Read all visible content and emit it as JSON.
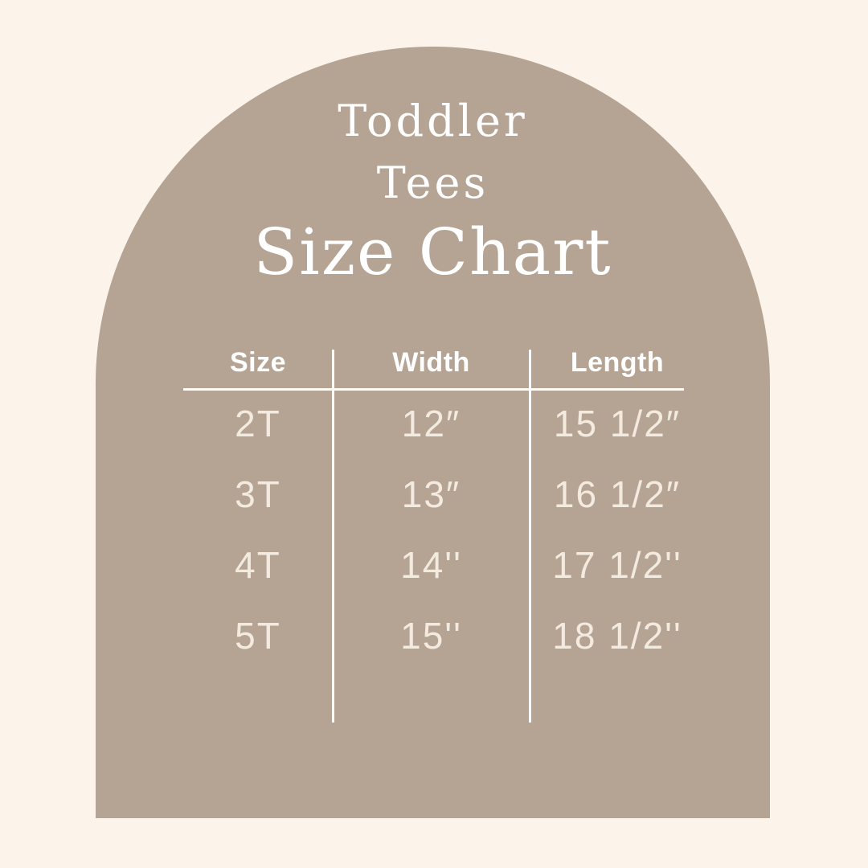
{
  "title": {
    "line1": "Toddler",
    "line2": "Tees",
    "main": "Size Chart"
  },
  "chart_data": {
    "type": "table",
    "title": "Toddler Tees Size Chart",
    "columns": [
      "Size",
      "Width",
      "Length"
    ],
    "rows": [
      [
        "2T",
        "12″",
        "15 1/2″"
      ],
      [
        "3T",
        "13″",
        "16 1/2″"
      ],
      [
        "4T",
        "14''",
        "17 1/2''"
      ],
      [
        "5T",
        "15''",
        "18 1/2''"
      ]
    ],
    "layout_hints": {
      "grid": "off",
      "header_separator": "horizontal-line",
      "column_separators": "vertical-lines"
    }
  },
  "colors": {
    "background": "#FCF3EA",
    "arch": "#B5A494",
    "title_text": "#FFFFFF",
    "header_text": "#FFFFFF",
    "value_text": "#F4EBE0",
    "rule_lines": "#FEFDFB"
  }
}
